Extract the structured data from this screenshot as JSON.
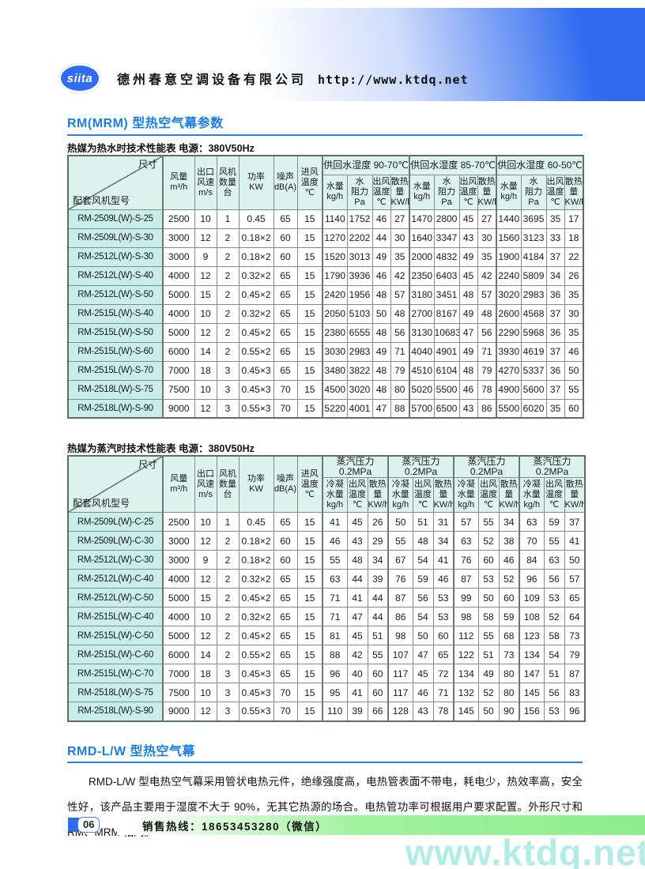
{
  "header": {
    "logo": "siita",
    "company": "德州春意空调设备有限公司",
    "url": "http://www.ktdq.net"
  },
  "section_rm": {
    "title": "RM(MRM) 型热空气幕参数",
    "hot_water": {
      "subtitle": "热媒为热水时技术性能表  电源：380V50Hz",
      "corner_top": "尺寸",
      "corner_bottom": "配套风机型号",
      "base_headers": [
        [
          "风量",
          "m³/h"
        ],
        [
          "出口",
          "风速",
          "m/s"
        ],
        [
          "风机",
          "数量",
          "台"
        ],
        [
          "功率",
          "KW"
        ],
        [
          "噪声",
          "dB(A)"
        ],
        [
          "进风",
          "温度",
          "℃"
        ]
      ],
      "groups": [
        {
          "label": [
            "供回水湿度 90-70℃"
          ],
          "subcols": [
            [
              "水量",
              "kg/h"
            ],
            [
              "水",
              "阻力",
              "Pa"
            ],
            [
              "出风",
              "温度",
              "℃"
            ],
            [
              "散热",
              "量",
              "KW/h"
            ]
          ]
        },
        {
          "label": [
            "供回水湿度 85-70℃"
          ],
          "subcols": [
            [
              "水量",
              "kg/h"
            ],
            [
              "水",
              "阻力",
              "Pa"
            ],
            [
              "出风",
              "温度",
              "℃"
            ],
            [
              "散热",
              "量",
              "KW/h"
            ]
          ]
        },
        {
          "label": [
            "供回水湿度 60-50℃"
          ],
          "subcols": [
            [
              "水量",
              "kg/h"
            ],
            [
              "水",
              "阻力",
              "Pa"
            ],
            [
              "出风",
              "温度",
              "℃"
            ],
            [
              "散热",
              "量",
              "KW/h"
            ]
          ]
        }
      ],
      "rows": [
        [
          "RM-2509L(W)-S-25",
          "2500",
          "10",
          "1",
          "0.45",
          "65",
          "15",
          "1140",
          "1752",
          "46",
          "27",
          "1470",
          "2800",
          "45",
          "27",
          "1440",
          "3695",
          "35",
          "17"
        ],
        [
          "RM-2509L(W)-S-30",
          "3000",
          "12",
          "2",
          "0.18×2",
          "60",
          "15",
          "1270",
          "2202",
          "44",
          "30",
          "1640",
          "3347",
          "43",
          "30",
          "1560",
          "3123",
          "33",
          "18"
        ],
        [
          "RM-2512L(W)-S-30",
          "3000",
          "9",
          "2",
          "0.18×2",
          "60",
          "15",
          "1520",
          "3013",
          "49",
          "35",
          "2000",
          "4832",
          "49",
          "35",
          "1900",
          "4184",
          "37",
          "22"
        ],
        [
          "RM-2512L(W)-S-40",
          "4000",
          "12",
          "2",
          "0.32×2",
          "65",
          "15",
          "1790",
          "3936",
          "46",
          "42",
          "2350",
          "6403",
          "45",
          "42",
          "2240",
          "5809",
          "34",
          "26"
        ],
        [
          "RM-2512L(W)-S-50",
          "5000",
          "15",
          "2",
          "0.45×2",
          "65",
          "15",
          "2420",
          "1956",
          "48",
          "57",
          "3180",
          "3451",
          "48",
          "57",
          "3020",
          "2983",
          "36",
          "35"
        ],
        [
          "RM-2515L(W)-S-40",
          "4000",
          "10",
          "2",
          "0.32×2",
          "65",
          "15",
          "2050",
          "5103",
          "50",
          "48",
          "2700",
          "8167",
          "49",
          "48",
          "2600",
          "4568",
          "37",
          "30"
        ],
        [
          "RM-2515L(W)-S-50",
          "5000",
          "12",
          "2",
          "0.45×2",
          "65",
          "15",
          "2380",
          "6555",
          "48",
          "56",
          "3130",
          "10683",
          "47",
          "56",
          "2290",
          "5968",
          "36",
          "35"
        ],
        [
          "RM-2515L(W)-S-60",
          "6000",
          "14",
          "2",
          "0.55×2",
          "65",
          "15",
          "3030",
          "2983",
          "49",
          "71",
          "4040",
          "4901",
          "49",
          "71",
          "3930",
          "4619",
          "37",
          "46"
        ],
        [
          "RM-2515L(W)-S-70",
          "7000",
          "18",
          "3",
          "0.45×3",
          "65",
          "15",
          "3480",
          "3822",
          "48",
          "79",
          "4510",
          "6104",
          "48",
          "79",
          "4270",
          "5337",
          "36",
          "50"
        ],
        [
          "RM-2518L(W)-S-75",
          "7500",
          "10",
          "3",
          "0.45×3",
          "70",
          "15",
          "4500",
          "3020",
          "48",
          "80",
          "5020",
          "5500",
          "46",
          "78",
          "4900",
          "5600",
          "37",
          "55"
        ],
        [
          "RM-2518L(W)-S-90",
          "9000",
          "12",
          "3",
          "0.55×3",
          "70",
          "15",
          "5220",
          "4001",
          "47",
          "88",
          "5700",
          "6500",
          "43",
          "86",
          "5500",
          "6020",
          "35",
          "60"
        ]
      ]
    },
    "steam": {
      "subtitle": "热媒为蒸汽时技术性能表  电源：380V50Hz",
      "corner_top": "尺寸",
      "corner_bottom": "配套风机型号",
      "base_headers": [
        [
          "风量",
          "m³/h"
        ],
        [
          "出口",
          "风速",
          "m/s"
        ],
        [
          "风机",
          "数量",
          "台"
        ],
        [
          "功率",
          "KW"
        ],
        [
          "噪声",
          "dB(A)"
        ],
        [
          "进风",
          "温度",
          "℃"
        ]
      ],
      "groups": [
        {
          "label": [
            "蒸汽压力",
            "0.2MPa"
          ],
          "subcols": [
            [
              "冷凝",
              "水量",
              "kg/h"
            ],
            [
              "出风",
              "温度",
              "℃"
            ],
            [
              "散热",
              "量",
              "KW/h"
            ]
          ]
        },
        {
          "label": [
            "蒸汽压力",
            "0.2MPa"
          ],
          "subcols": [
            [
              "冷凝",
              "水量",
              "kg/h"
            ],
            [
              "出风",
              "温度",
              "℃"
            ],
            [
              "散热",
              "量",
              "KW/h"
            ]
          ]
        },
        {
          "label": [
            "蒸汽压力",
            "0.2MPa"
          ],
          "subcols": [
            [
              "冷凝",
              "水量",
              "kg/h"
            ],
            [
              "出风",
              "温度",
              "℃"
            ],
            [
              "散热",
              "量",
              "KW/h"
            ]
          ]
        },
        {
          "label": [
            "蒸汽压力",
            "0.2MPa"
          ],
          "subcols": [
            [
              "冷凝",
              "水量",
              "kg/h"
            ],
            [
              "出风",
              "温度",
              "℃"
            ],
            [
              "散热",
              "量",
              "KW/h"
            ]
          ]
        }
      ],
      "rows": [
        [
          "RM-2509L(W)-C-25",
          "2500",
          "10",
          "1",
          "0.45",
          "65",
          "15",
          "41",
          "45",
          "26",
          "50",
          "51",
          "31",
          "57",
          "55",
          "34",
          "63",
          "59",
          "37"
        ],
        [
          "RM-2509L(W)-C-30",
          "3000",
          "12",
          "2",
          "0.18×2",
          "60",
          "15",
          "46",
          "43",
          "29",
          "55",
          "48",
          "34",
          "63",
          "52",
          "38",
          "70",
          "55",
          "41"
        ],
        [
          "RM-2512L(W)-C-30",
          "3000",
          "9",
          "2",
          "0.18×2",
          "60",
          "15",
          "55",
          "48",
          "34",
          "67",
          "54",
          "41",
          "76",
          "60",
          "46",
          "84",
          "63",
          "50"
        ],
        [
          "RM-2512L(W)-C-40",
          "4000",
          "12",
          "2",
          "0.32×2",
          "65",
          "15",
          "63",
          "44",
          "39",
          "76",
          "59",
          "46",
          "87",
          "53",
          "52",
          "96",
          "56",
          "57"
        ],
        [
          "RM-2512L(W)-C-50",
          "5000",
          "15",
          "2",
          "0.45×2",
          "65",
          "15",
          "71",
          "41",
          "44",
          "87",
          "56",
          "53",
          "99",
          "50",
          "60",
          "109",
          "53",
          "65"
        ],
        [
          "RM-2515L(W)-C-40",
          "4000",
          "10",
          "2",
          "0.32×2",
          "65",
          "15",
          "71",
          "47",
          "44",
          "86",
          "54",
          "53",
          "98",
          "58",
          "59",
          "108",
          "52",
          "64"
        ],
        [
          "RM-2515L(W)-C-50",
          "5000",
          "12",
          "2",
          "0.45×2",
          "65",
          "15",
          "81",
          "45",
          "51",
          "98",
          "50",
          "60",
          "112",
          "55",
          "68",
          "123",
          "58",
          "73"
        ],
        [
          "RM-2515L(W)-C-60",
          "6000",
          "14",
          "2",
          "0.55×2",
          "65",
          "15",
          "88",
          "42",
          "55",
          "107",
          "47",
          "65",
          "122",
          "51",
          "73",
          "134",
          "54",
          "79"
        ],
        [
          "RM-2515L(W)-C-70",
          "7000",
          "18",
          "3",
          "0.45×3",
          "65",
          "15",
          "96",
          "40",
          "60",
          "117",
          "45",
          "72",
          "134",
          "49",
          "80",
          "147",
          "51",
          "87"
        ],
        [
          "RM-2518L(W)-S-75",
          "7500",
          "10",
          "3",
          "0.45×3",
          "70",
          "15",
          "95",
          "41",
          "60",
          "117",
          "46",
          "71",
          "132",
          "52",
          "80",
          "145",
          "56",
          "83"
        ],
        [
          "RM-2518L(W)-S-90",
          "9000",
          "12",
          "3",
          "0.55×3",
          "70",
          "15",
          "110",
          "39",
          "66",
          "128",
          "43",
          "78",
          "145",
          "50",
          "90",
          "156",
          "53",
          "96"
        ]
      ]
    }
  },
  "section_rmd": {
    "title": "RMD-L/W 型热空气幕",
    "paragraph": "RMD-L/W 型电热空气幕采用管状电热元件，绝缘强度高，电热管表面不带电，耗电少，热效率高，安全性好，该产品主要用于湿度不大于 90%，无其它热源的场合。电热管功率可根据用户要求配置。外形尺寸和 RM、MRM 相同。"
  },
  "footer": {
    "page_number": "06",
    "hotline": "销售热线：18653453280（微信）",
    "watermark": "www.ktdq.net"
  },
  "colors": {
    "accent_blue": "#1b7de0",
    "band_blue": "#2e6bf0",
    "table_header_bg": "#ddf3ee",
    "model_col_bg": "#c9eeea",
    "footer_green": "#8bee8b",
    "watermark_teal": "#b2ece7"
  }
}
